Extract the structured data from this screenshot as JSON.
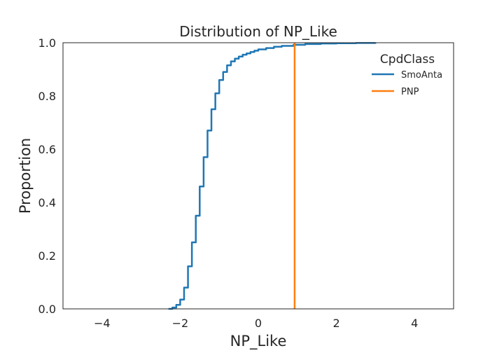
{
  "chart_data": {
    "type": "line",
    "title": "Distribution of NP_Like",
    "xlabel": "NP_Like",
    "ylabel": "Proportion",
    "xlim": [
      -5,
      5
    ],
    "ylim": [
      0,
      1
    ],
    "xticks": [
      -4,
      -2,
      0,
      2,
      4
    ],
    "xtick_labels": [
      "−4",
      "−2",
      "0",
      "2",
      "4"
    ],
    "yticks": [
      0,
      0.2,
      0.4,
      0.6,
      0.8,
      1.0
    ],
    "ytick_labels": [
      "0.0",
      "0.2",
      "0.4",
      "0.6",
      "0.8",
      "1.0"
    ],
    "grid": false,
    "legend": {
      "title": "CpdClass",
      "position": "upper right"
    },
    "series": [
      {
        "name": "SmoAnta",
        "color": "#1f77b4",
        "x": [
          -2.3,
          -2.2,
          -2.1,
          -2.0,
          -1.9,
          -1.8,
          -1.7,
          -1.6,
          -1.5,
          -1.4,
          -1.3,
          -1.2,
          -1.1,
          -1.0,
          -0.9,
          -0.8,
          -0.7,
          -0.6,
          -0.5,
          -0.4,
          -0.3,
          -0.2,
          -0.1,
          0.0,
          0.2,
          0.4,
          0.6,
          0.9,
          1.2,
          1.6,
          2.0,
          2.5,
          3.0
        ],
        "y": [
          0.0,
          0.005,
          0.015,
          0.035,
          0.08,
          0.16,
          0.25,
          0.35,
          0.46,
          0.57,
          0.67,
          0.75,
          0.81,
          0.86,
          0.89,
          0.915,
          0.93,
          0.94,
          0.948,
          0.955,
          0.96,
          0.965,
          0.97,
          0.975,
          0.98,
          0.985,
          0.988,
          0.992,
          0.995,
          0.997,
          0.998,
          0.999,
          1.0
        ]
      },
      {
        "name": "PNP",
        "color": "#ff7f0e",
        "x": [
          0.93,
          0.93
        ],
        "y": [
          0.0,
          1.0
        ]
      }
    ]
  }
}
